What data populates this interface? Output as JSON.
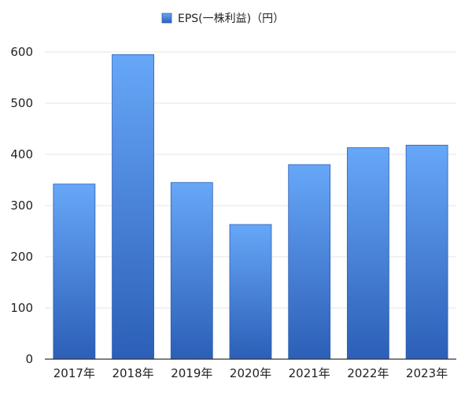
{
  "chart_data": {
    "type": "bar",
    "categories": [
      "2017年",
      "2018年",
      "2019年",
      "2020年",
      "2021年",
      "2022年",
      "2023年"
    ],
    "series": [
      {
        "name": "EPS(一株利益)（円）",
        "values": [
          342,
          595,
          345,
          263,
          380,
          413,
          418
        ],
        "color": "#3d79d6"
      }
    ],
    "ylim": [
      0,
      600
    ],
    "yticks": [
      0,
      100,
      200,
      300,
      400,
      500,
      600
    ],
    "grid": true,
    "legend_position": "top-center",
    "colors": {
      "bar_top": "#67a7f8",
      "bar_bottom": "#2c5fb7",
      "bar_edge": "#2b5db5",
      "grid": "#e6e6e6",
      "axis": "#333333"
    }
  }
}
